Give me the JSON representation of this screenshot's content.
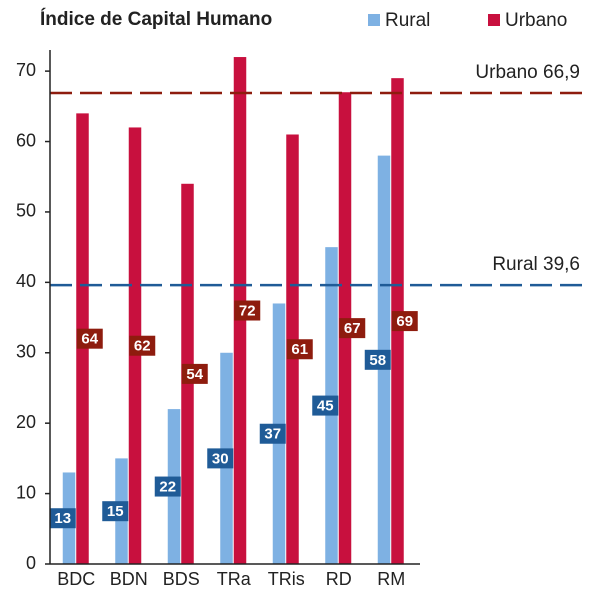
{
  "chart_data": {
    "type": "bar",
    "title": "Índice de Capital Humano",
    "categories": [
      "BDC",
      "BDN",
      "BDS",
      "TRa",
      "TRis",
      "RD",
      "RM"
    ],
    "series": [
      {
        "name": "Rural",
        "color": "#7eb1e3",
        "label_color": "#1f5b97",
        "values": [
          13,
          15,
          22,
          30,
          37,
          45,
          58
        ]
      },
      {
        "name": "Urbano",
        "color": "#c8103e",
        "label_color": "#8e1c0e",
        "values": [
          64,
          62,
          54,
          72,
          61,
          67,
          69
        ]
      }
    ],
    "reference_lines": [
      {
        "value": 66.9,
        "label": "Urbano 66,9",
        "color": "#8e1c0e"
      },
      {
        "value": 39.6,
        "label": "Rural 39,6",
        "color": "#1f5b97"
      }
    ],
    "ylim": [
      0,
      73
    ],
    "yticks": [
      0,
      10,
      20,
      30,
      40,
      50,
      60,
      70
    ]
  }
}
